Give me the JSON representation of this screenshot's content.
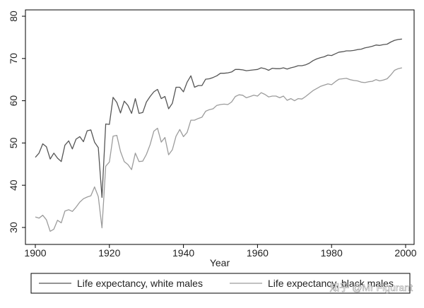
{
  "chart_data": {
    "type": "line",
    "title": "",
    "xlabel": "Year",
    "ylabel": "",
    "xlim": [
      1900,
      2000
    ],
    "ylim": [
      28,
      82
    ],
    "xticks": [
      "1900",
      "1920",
      "1940",
      "1960",
      "1980",
      "2000"
    ],
    "yticks": [
      "30",
      "40",
      "50",
      "60",
      "70",
      "80"
    ],
    "legend_position": "bottom",
    "series": [
      {
        "name": "Life expectancy, white males",
        "color": "#555555",
        "x": [
          1900,
          1901,
          1902,
          1903,
          1904,
          1905,
          1906,
          1907,
          1908,
          1909,
          1910,
          1911,
          1912,
          1913,
          1914,
          1915,
          1916,
          1917,
          1918,
          1919,
          1920,
          1921,
          1922,
          1923,
          1924,
          1925,
          1926,
          1927,
          1928,
          1929,
          1930,
          1931,
          1932,
          1933,
          1934,
          1935,
          1936,
          1937,
          1938,
          1939,
          1940,
          1941,
          1942,
          1943,
          1944,
          1945,
          1946,
          1947,
          1948,
          1949,
          1950,
          1951,
          1952,
          1953,
          1954,
          1955,
          1956,
          1957,
          1958,
          1959,
          1960,
          1961,
          1962,
          1963,
          1964,
          1965,
          1966,
          1967,
          1968,
          1969,
          1970,
          1971,
          1972,
          1973,
          1974,
          1975,
          1976,
          1977,
          1978,
          1979,
          1980,
          1981,
          1982,
          1983,
          1984,
          1985,
          1986,
          1987,
          1988,
          1989,
          1990,
          1991,
          1992,
          1993,
          1994,
          1995,
          1996,
          1997,
          1998,
          1999
        ],
        "values": [
          46.6,
          47.6,
          49.8,
          49.1,
          46.2,
          47.6,
          46.4,
          45.6,
          49.5,
          50.5,
          48.6,
          50.9,
          51.5,
          50.3,
          52.9,
          53.1,
          50.2,
          48.9,
          37.1,
          54.5,
          54.4,
          60.8,
          59.6,
          57.1,
          59.9,
          58.9,
          57.0,
          60.5,
          57.0,
          57.2,
          59.7,
          61.0,
          62.1,
          62.7,
          60.5,
          61.0,
          58.1,
          59.4,
          63.2,
          63.2,
          62.1,
          64.4,
          65.9,
          63.2,
          63.6,
          63.6,
          65.1,
          65.2,
          65.5,
          65.9,
          66.5,
          66.5,
          66.6,
          66.8,
          67.4,
          67.4,
          67.3,
          67.1,
          67.2,
          67.3,
          67.4,
          67.8,
          67.6,
          67.2,
          67.7,
          67.6,
          67.6,
          67.8,
          67.5,
          67.8,
          68.0,
          68.3,
          68.3,
          68.5,
          68.9,
          69.5,
          69.9,
          70.2,
          70.4,
          70.8,
          70.7,
          71.1,
          71.5,
          71.6,
          71.8,
          71.8,
          71.9,
          72.1,
          72.2,
          72.5,
          72.7,
          72.9,
          73.2,
          73.1,
          73.3,
          73.4,
          73.9,
          74.3,
          74.5,
          74.6
        ]
      },
      {
        "name": "Life expectancy, black males",
        "color": "#9c9c9c",
        "x": [
          1900,
          1901,
          1902,
          1903,
          1904,
          1905,
          1906,
          1907,
          1908,
          1909,
          1910,
          1911,
          1912,
          1913,
          1914,
          1915,
          1916,
          1917,
          1918,
          1919,
          1920,
          1921,
          1922,
          1923,
          1924,
          1925,
          1926,
          1927,
          1928,
          1929,
          1930,
          1931,
          1932,
          1933,
          1934,
          1935,
          1936,
          1937,
          1938,
          1939,
          1940,
          1941,
          1942,
          1943,
          1944,
          1945,
          1946,
          1947,
          1948,
          1949,
          1950,
          1951,
          1952,
          1953,
          1954,
          1955,
          1956,
          1957,
          1958,
          1959,
          1960,
          1961,
          1962,
          1963,
          1964,
          1965,
          1966,
          1967,
          1968,
          1969,
          1970,
          1971,
          1972,
          1973,
          1974,
          1975,
          1976,
          1977,
          1978,
          1979,
          1980,
          1981,
          1982,
          1983,
          1984,
          1985,
          1986,
          1987,
          1988,
          1989,
          1990,
          1991,
          1992,
          1993,
          1994,
          1995,
          1996,
          1997,
          1998,
          1999
        ],
        "values": [
          32.5,
          32.2,
          32.9,
          31.8,
          29.1,
          29.6,
          31.7,
          31.1,
          33.9,
          34.2,
          33.8,
          34.8,
          36.0,
          36.8,
          37.2,
          37.5,
          39.6,
          37.3,
          29.9,
          44.5,
          45.5,
          51.6,
          51.8,
          48.0,
          45.6,
          44.9,
          43.7,
          47.6,
          45.6,
          45.7,
          47.3,
          49.6,
          52.8,
          53.5,
          50.2,
          51.3,
          47.2,
          48.4,
          51.6,
          53.2,
          51.5,
          52.5,
          55.4,
          55.4,
          55.8,
          56.1,
          57.5,
          57.9,
          58.1,
          58.9,
          59.1,
          59.2,
          59.1,
          59.7,
          61.0,
          61.4,
          61.3,
          60.7,
          61.0,
          61.3,
          61.1,
          61.9,
          61.5,
          60.9,
          61.1,
          61.1,
          60.7,
          61.1,
          60.1,
          60.5,
          60.0,
          60.5,
          60.4,
          61.0,
          61.7,
          62.4,
          62.9,
          63.4,
          63.7,
          64.0,
          63.8,
          64.5,
          65.1,
          65.2,
          65.3,
          65.0,
          64.8,
          64.7,
          64.4,
          64.3,
          64.5,
          64.6,
          65.0,
          64.7,
          64.9,
          65.2,
          66.1,
          67.2,
          67.6,
          67.8
        ]
      }
    ]
  },
  "watermark": "知乎 @Mr Figurant"
}
